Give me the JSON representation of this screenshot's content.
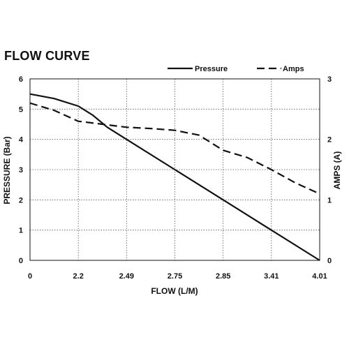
{
  "chart_data": {
    "type": "line",
    "title": "FLOW CURVE",
    "xlabel": "FLOW (L/M)",
    "ylabel": "PRESSURE (Bar)",
    "y2label": "AMPS (A)",
    "categories": [
      "0",
      "2.2",
      "2.49",
      "2.75",
      "2.85",
      "3.41",
      "4.01"
    ],
    "ylim": [
      0,
      6
    ],
    "y2lim": [
      0,
      3
    ],
    "y_ticks": [
      "0",
      "1",
      "2",
      "3",
      "4",
      "5",
      "6"
    ],
    "y2_ticks": [
      "0",
      "1",
      "2",
      "3"
    ],
    "grid": true,
    "legend_position": "top-right",
    "series": [
      {
        "name": "Pressure",
        "axis": "left",
        "style": "solid",
        "color": "#111111",
        "x": [
          0,
          0.5,
          1,
          1.3,
          1.6,
          2,
          3,
          4,
          5,
          6
        ],
        "values": [
          5.5,
          5.35,
          5.1,
          4.8,
          4.4,
          4.0,
          3.0,
          2.0,
          1.0,
          0
        ]
      },
      {
        "name": "Amps",
        "axis": "right",
        "style": "dashed",
        "color": "#111111",
        "x": [
          0,
          0.5,
          1,
          1.5,
          2,
          2.5,
          3,
          3.5,
          4,
          4.5,
          5,
          5.5,
          6
        ],
        "values": [
          2.6,
          2.48,
          2.3,
          2.25,
          2.2,
          2.18,
          2.15,
          2.07,
          1.82,
          1.7,
          1.5,
          1.28,
          1.1
        ]
      }
    ]
  }
}
